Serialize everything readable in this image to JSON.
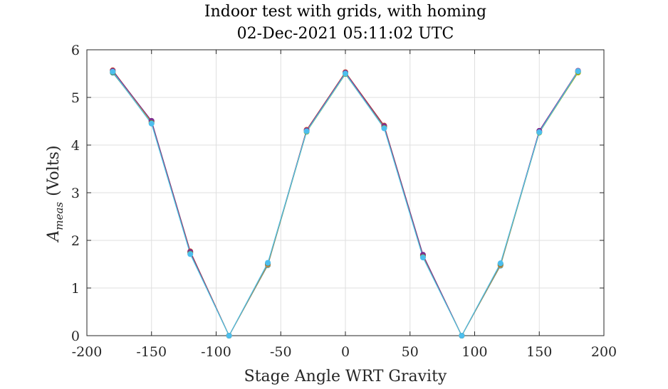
{
  "chart_data": {
    "type": "line",
    "title": "Indoor test with grids, with homing",
    "subtitle": "02-Dec-2021 05:11:02 UTC",
    "xlabel": "Stage Angle WRT Gravity",
    "ylabel_main": "A",
    "ylabel_subscript": "meas",
    "ylabel_unit": "(Volts)",
    "xlim": [
      -200,
      200
    ],
    "ylim": [
      0,
      6
    ],
    "xticks": [
      -200,
      -150,
      -100,
      -50,
      0,
      50,
      100,
      150,
      200
    ],
    "xtick_labels": [
      "-200",
      "-150",
      "-100",
      "-50",
      "0",
      "50",
      "100",
      "150",
      "200"
    ],
    "yticks": [
      0,
      1,
      2,
      3,
      4,
      5,
      6
    ],
    "ytick_labels": [
      "0",
      "1",
      "2",
      "3",
      "4",
      "5",
      "6"
    ],
    "grid": true,
    "x": [
      -180,
      -150,
      -120,
      -90,
      -60,
      -30,
      0,
      30,
      60,
      90,
      120,
      150,
      180
    ],
    "series": [
      {
        "color": "#0072BD",
        "values": [
          5.52,
          4.49,
          1.75,
          0.0,
          1.48,
          4.29,
          5.5,
          4.38,
          1.68,
          0.0,
          1.47,
          4.27,
          5.54
        ]
      },
      {
        "color": "#D95319",
        "values": [
          5.57,
          4.5,
          1.77,
          0.0,
          1.5,
          4.32,
          5.53,
          4.41,
          1.69,
          0.0,
          1.49,
          4.29,
          5.55
        ]
      },
      {
        "color": "#EDB120",
        "values": [
          5.55,
          4.47,
          1.74,
          0.0,
          1.49,
          4.3,
          5.51,
          4.39,
          1.67,
          0.0,
          1.48,
          4.28,
          5.52
        ]
      },
      {
        "color": "#7E2F8E",
        "values": [
          5.56,
          4.51,
          1.76,
          0.0,
          1.51,
          4.31,
          5.52,
          4.4,
          1.7,
          0.0,
          1.5,
          4.3,
          5.56
        ]
      },
      {
        "color": "#77AC30",
        "values": [
          5.53,
          4.46,
          1.72,
          0.0,
          1.52,
          4.28,
          5.49,
          4.36,
          1.65,
          0.0,
          1.51,
          4.26,
          5.53
        ]
      },
      {
        "color": "#4DBEEE",
        "values": [
          5.54,
          4.45,
          1.71,
          0.0,
          1.53,
          4.29,
          5.5,
          4.35,
          1.64,
          0.0,
          1.52,
          4.27,
          5.55
        ]
      }
    ]
  }
}
